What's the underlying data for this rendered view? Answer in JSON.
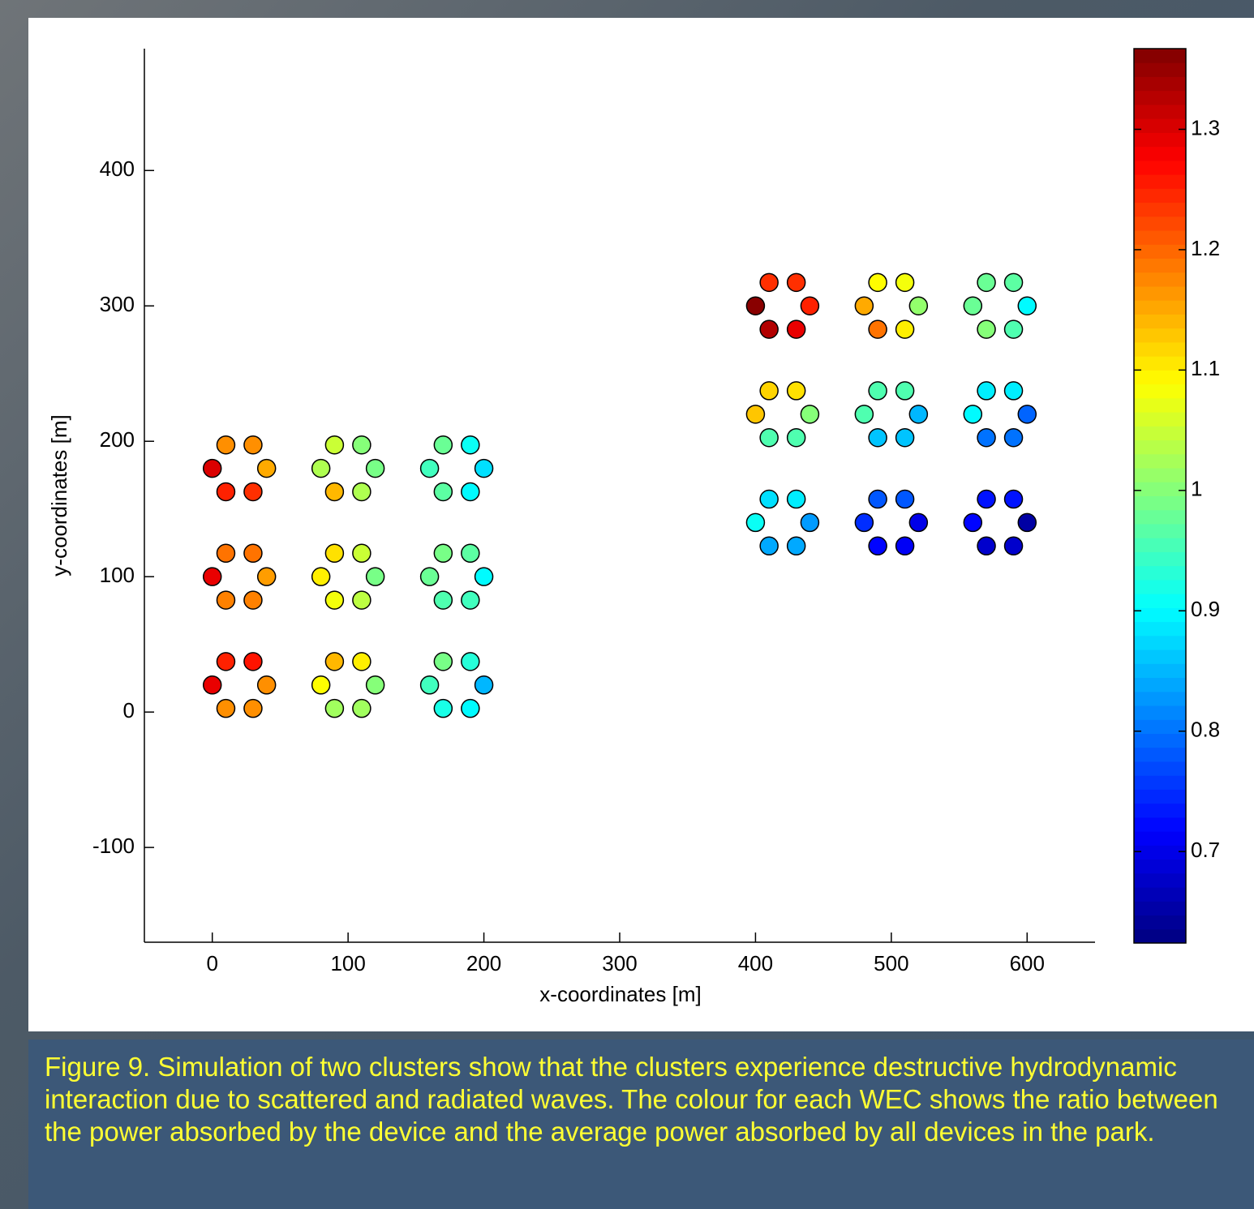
{
  "chart_data": {
    "type": "scatter",
    "x_label": "x-coordinates [m]",
    "y_label": "y-coordinates [m]",
    "xlim": [
      -50,
      650
    ],
    "xticks": [
      0,
      100,
      200,
      300,
      400,
      500,
      600
    ],
    "ylim": [
      -170,
      490
    ],
    "yticks": [
      -100,
      0,
      100,
      200,
      300,
      400
    ],
    "colormap": "jet",
    "clim": [
      0.624,
      1.367
    ],
    "cticks": [
      0.7,
      0.8,
      0.9,
      1,
      1.1,
      1.2,
      1.3
    ],
    "x": [
      0,
      10,
      30,
      40,
      30,
      10,
      0,
      10,
      30,
      40,
      30,
      10,
      0,
      10,
      30,
      40,
      30,
      10,
      80,
      90,
      110,
      120,
      110,
      90,
      80,
      90,
      110,
      120,
      110,
      90,
      80,
      90,
      110,
      120,
      110,
      90,
      160,
      170,
      190,
      200,
      190,
      170,
      160,
      170,
      190,
      200,
      190,
      170,
      160,
      170,
      190,
      200,
      190,
      170,
      400,
      410,
      430,
      440,
      430,
      410,
      400,
      410,
      430,
      440,
      430,
      410,
      400,
      410,
      430,
      440,
      430,
      410,
      480,
      490,
      510,
      520,
      510,
      490,
      480,
      490,
      510,
      520,
      510,
      490,
      480,
      490,
      510,
      520,
      510,
      490,
      560,
      570,
      590,
      600,
      590,
      570,
      560,
      570,
      590,
      600,
      590,
      570,
      560,
      570,
      590,
      600,
      590,
      570
    ],
    "y": [
      20,
      37.3,
      37.3,
      20,
      2.7,
      2.7,
      100,
      117.3,
      117.3,
      100,
      82.7,
      82.7,
      180,
      197.3,
      197.3,
      180,
      162.7,
      162.7,
      20,
      37.3,
      37.3,
      20,
      2.7,
      2.7,
      100,
      117.3,
      117.3,
      100,
      82.7,
      82.7,
      180,
      197.3,
      197.3,
      180,
      162.7,
      162.7,
      20,
      37.3,
      37.3,
      20,
      2.7,
      2.7,
      100,
      117.3,
      117.3,
      100,
      82.7,
      82.7,
      180,
      197.3,
      197.3,
      180,
      162.7,
      162.7,
      140,
      157.3,
      157.3,
      140,
      122.7,
      122.7,
      220,
      237.3,
      237.3,
      220,
      202.7,
      202.7,
      300,
      317.3,
      317.3,
      300,
      282.7,
      282.7,
      140,
      157.3,
      157.3,
      140,
      122.7,
      122.7,
      220,
      237.3,
      237.3,
      220,
      202.7,
      202.7,
      300,
      317.3,
      317.3,
      300,
      282.7,
      282.7,
      140,
      157.3,
      157.3,
      140,
      122.7,
      122.7,
      220,
      237.3,
      237.3,
      220,
      202.7,
      202.7,
      300,
      317.3,
      317.3,
      300,
      282.7,
      282.7
    ],
    "values": [
      1.29,
      1.25,
      1.26,
      1.17,
      1.17,
      1.17,
      1.29,
      1.19,
      1.19,
      1.16,
      1.18,
      1.18,
      1.3,
      1.17,
      1.17,
      1.15,
      1.24,
      1.25,
      1.09,
      1.14,
      1.1,
      1.0,
      1.02,
      1.02,
      1.1,
      1.11,
      1.05,
      0.99,
      1.04,
      1.08,
      1.03,
      1.05,
      1.0,
      0.99,
      1.03,
      1.14,
      0.95,
      0.99,
      0.93,
      0.85,
      0.9,
      0.92,
      0.98,
      0.99,
      0.97,
      0.9,
      0.95,
      0.96,
      0.95,
      0.98,
      0.91,
      0.88,
      0.9,
      0.97,
      0.91,
      0.88,
      0.89,
      0.83,
      0.84,
      0.84,
      1.13,
      1.12,
      1.11,
      1.0,
      0.96,
      0.96,
      1.36,
      1.24,
      1.24,
      1.25,
      1.29,
      1.33,
      0.75,
      0.78,
      0.78,
      0.7,
      0.71,
      0.72,
      0.96,
      0.96,
      0.96,
      0.85,
      0.86,
      0.86,
      1.15,
      1.09,
      1.08,
      1.01,
      1.1,
      1.19,
      0.72,
      0.73,
      0.73,
      0.65,
      0.68,
      0.68,
      0.9,
      0.89,
      0.89,
      0.79,
      0.8,
      0.8,
      0.98,
      0.98,
      0.97,
      0.9,
      0.96,
      1.0
    ]
  },
  "caption": "Figure 9. Simulation of two clusters show that the clusters experience destructive hydrodynamic interaction due to scattered and radiated waves. The colour for each WEC shows the ratio between the power absorbed by the device and the average power absorbed by all devices in the park."
}
